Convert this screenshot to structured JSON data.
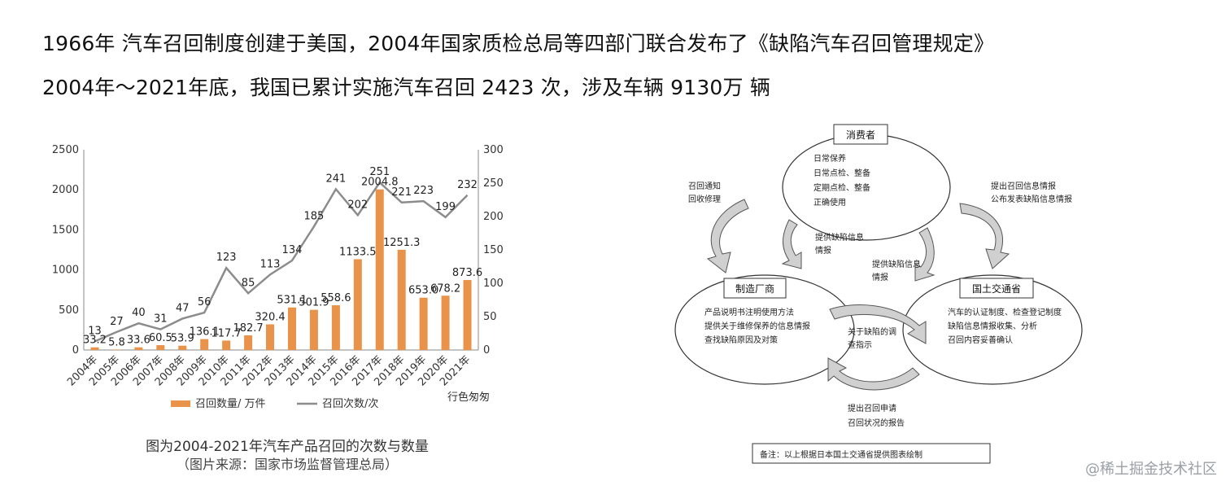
{
  "headline": {
    "line1": "1966年 汽车召回制度创建于美国，2004年国家质检总局等四部门联合发布了《缺陷汽车召回管理规定》",
    "line2": "2004年～2021年底，我国已累计实施汽车召回 2423 次，涉及车辆 9130万 辆"
  },
  "chart_data": {
    "type": "bar",
    "categories": [
      "2004年",
      "2005年",
      "2006年",
      "2007年",
      "2008年",
      "2009年",
      "2010年",
      "2011年",
      "2012年",
      "2013年",
      "2014年",
      "2015年",
      "2016年",
      "2017年",
      "2018年",
      "2019年",
      "2020年",
      "2021年"
    ],
    "series": [
      {
        "name": "召回数量/ 万件",
        "type": "bar",
        "axis": "left",
        "color": "#e8924a",
        "values": [
          33.2,
          5.8,
          33.6,
          60.5,
          53.9,
          136.1,
          117.7,
          182.7,
          320.4,
          531.1,
          501.9,
          558.6,
          1133.5,
          2004.8,
          1251.3,
          653.0,
          678.2,
          873.6
        ],
        "labels": [
          "33.2",
          "5.8",
          "33.6",
          "60.5",
          "53.9",
          "136.1",
          "117.7",
          "182.7",
          "320.4",
          "531.1",
          "501.9",
          "558.6",
          "1133.5",
          "2004.8",
          "1251.3",
          "653.0",
          "678.2",
          "873.6"
        ]
      },
      {
        "name": "召回次数/次",
        "type": "line",
        "axis": "right",
        "color": "#8c8c8c",
        "values": [
          13,
          27,
          40,
          31,
          47,
          56,
          123,
          85,
          113,
          134,
          185,
          241,
          202,
          251,
          221,
          223,
          199,
          232
        ],
        "labels": [
          "13",
          "27",
          "40",
          "31",
          "47",
          "56",
          "123",
          "85",
          "113",
          "134",
          "185",
          "241",
          "202",
          "251",
          "221",
          "223",
          "199",
          "232"
        ]
      }
    ],
    "left_ticks": [
      "0",
      "500",
      "1000",
      "1500",
      "2000",
      "2500"
    ],
    "right_ticks": [
      "0",
      "50",
      "100",
      "150",
      "200",
      "250",
      "300"
    ],
    "ylim_left": [
      0,
      2500
    ],
    "ylim_right": [
      0,
      300
    ],
    "legend_position": "bottom",
    "grid": false,
    "source_mark": "行色匆匆"
  },
  "caption": {
    "line1": "图为2004-2021年汽车产品召回的次数与数量",
    "line2": "（图片来源：国家市场监督管理总局）"
  },
  "diagram": {
    "consumer": {
      "title": "消费者",
      "items": [
        "日常保养",
        "日常点检、整备",
        "定期点检、整备",
        "正确使用"
      ]
    },
    "manufacturer": {
      "title": "制造厂商",
      "items": [
        "产品说明书注明使用方法",
        "提供关于维修保养的信息情报",
        "查找缺陷原因及对策"
      ]
    },
    "ministry": {
      "title": "国土交通省",
      "items": [
        "汽车的认证制度、检查登记制度",
        "缺陷信息情报收集、分析",
        "召回内容妥善确认"
      ]
    },
    "arrow_labels": {
      "recall_notice": [
        "召回通知",
        "回收修理"
      ],
      "report_request": [
        "提出召回信息情报",
        "公布发表缺陷信息情报"
      ],
      "defect_info_1": [
        "提供缺陷信息",
        "情报"
      ],
      "defect_info_2": [
        "提供缺陷信息",
        "情报"
      ],
      "defect_survey": [
        "关于缺陷的调",
        "查指示"
      ],
      "recall_apply": [
        "提出召回申请",
        "召回状况的报告"
      ]
    },
    "note": "备注：以上根据日本国土交通省提供图表绘制"
  },
  "watermark": "@稀土掘金技术社区"
}
